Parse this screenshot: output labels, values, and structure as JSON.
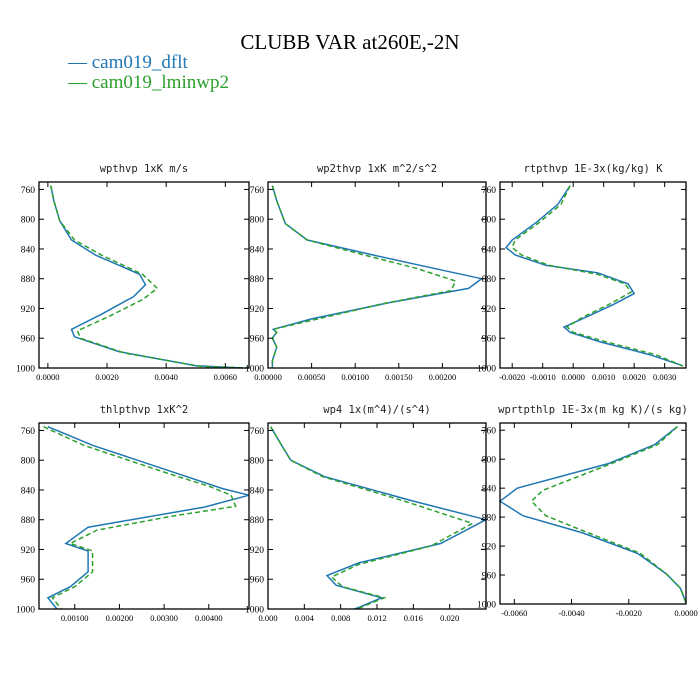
{
  "title": "CLUBB VAR at260E,-2N",
  "legend": [
    {
      "label": "cam019_dflt",
      "color": "#1f77b4",
      "dash": "solid"
    },
    {
      "label": "cam019_lminwp2",
      "color": "#2ca02c",
      "dash": "dashed"
    }
  ],
  "chart_data": [
    {
      "type": "line",
      "title": "wpthvp  1xK m/s",
      "ylim": [
        1000,
        750
      ],
      "yticks": [
        760,
        800,
        840,
        880,
        920,
        960,
        1000
      ],
      "xlim": [
        -0.0003,
        0.0068
      ],
      "xticks": [
        0,
        0.002,
        0.004,
        0.006
      ],
      "xticklabels": [
        "0.0000",
        "0.0020",
        "0.0040",
        "0.0060"
      ],
      "series": [
        {
          "name": "cam019_dflt",
          "points": [
            [
              0.0001,
              755
            ],
            [
              0.0002,
              775
            ],
            [
              0.0004,
              802
            ],
            [
              0.0008,
              828
            ],
            [
              0.0016,
              848
            ],
            [
              0.0031,
              874
            ],
            [
              0.0033,
              888
            ],
            [
              0.0029,
              904
            ],
            [
              0.0018,
              928
            ],
            [
              0.0008,
              948
            ],
            [
              0.0009,
              958
            ],
            [
              0.0024,
              978
            ],
            [
              0.005,
              997
            ],
            [
              0.0066,
              1000
            ]
          ]
        },
        {
          "name": "cam019_lminwp2",
          "points": [
            [
              0.0001,
              755
            ],
            [
              0.0002,
              775
            ],
            [
              0.0004,
              802
            ],
            [
              0.0009,
              828
            ],
            [
              0.0018,
              848
            ],
            [
              0.0032,
              874
            ],
            [
              0.0037,
              893
            ],
            [
              0.0032,
              908
            ],
            [
              0.0021,
              930
            ],
            [
              0.001,
              950
            ],
            [
              0.0011,
              960
            ],
            [
              0.0026,
              980
            ],
            [
              0.0052,
              998
            ],
            [
              0.0068,
              1000
            ]
          ]
        }
      ]
    },
    {
      "type": "line",
      "title": "wp2thvp  1xK m^2/s^2",
      "ylim": [
        1000,
        750
      ],
      "yticks": [
        760,
        800,
        840,
        880,
        920,
        960,
        1000
      ],
      "xlim": [
        0,
        0.0025
      ],
      "xticks": [
        0,
        0.0005,
        0.001,
        0.0015,
        0.002
      ],
      "xticklabels": [
        "0.00000",
        "0.00050",
        "0.00100",
        "0.00150",
        "0.00200"
      ],
      "series": [
        {
          "name": "cam019_dflt",
          "points": [
            [
              5e-05,
              755
            ],
            [
              0.0001,
              775
            ],
            [
              0.0002,
              806
            ],
            [
              0.00045,
              828
            ],
            [
              0.0012,
              848
            ],
            [
              0.0019,
              866
            ],
            [
              0.00245,
              880
            ],
            [
              0.0023,
              893
            ],
            [
              0.0014,
              912
            ],
            [
              0.0005,
              934
            ],
            [
              6e-05,
              948
            ],
            [
              0.0001,
              952
            ],
            [
              5e-05,
              960
            ],
            [
              0.0001,
              972
            ],
            [
              5e-05,
              990
            ],
            [
              5e-05,
              1000
            ]
          ]
        },
        {
          "name": "cam019_lminwp2",
          "points": [
            [
              5e-05,
              755
            ],
            [
              0.0001,
              775
            ],
            [
              0.0002,
              806
            ],
            [
              0.00045,
              828
            ],
            [
              0.0011,
              848
            ],
            [
              0.0017,
              866
            ],
            [
              0.00215,
              883
            ],
            [
              0.0021,
              896
            ],
            [
              0.0013,
              914
            ],
            [
              0.0005,
              936
            ],
            [
              6e-05,
              948
            ],
            [
              0.0001,
              952
            ],
            [
              5e-05,
              960
            ],
            [
              0.0001,
              972
            ],
            [
              5e-05,
              990
            ],
            [
              5e-05,
              1000
            ]
          ]
        }
      ]
    },
    {
      "type": "line",
      "title": "rtpthvp  1E-3x(kg/kg) K",
      "ylim": [
        1000,
        750
      ],
      "yticks": [
        760,
        800,
        840,
        880,
        920,
        960,
        1000
      ],
      "xlim": [
        -0.0024,
        0.0037
      ],
      "xticks": [
        -0.002,
        -0.001,
        0,
        0.001,
        0.002,
        0.003
      ],
      "xticklabels": [
        "-0.0020",
        "-0.0010",
        "0.0000",
        "0.0010",
        "0.0020",
        "0.0030"
      ],
      "series": [
        {
          "name": "cam019_dflt",
          "points": [
            [
              -0.0001,
              755
            ],
            [
              -0.0005,
              780
            ],
            [
              -0.0012,
              804
            ],
            [
              -0.002,
              828
            ],
            [
              -0.0022,
              838
            ],
            [
              -0.0019,
              848
            ],
            [
              -0.0009,
              862
            ],
            [
              0.0008,
              872
            ],
            [
              0.0018,
              887
            ],
            [
              0.002,
              900
            ],
            [
              0.0013,
              915
            ],
            [
              0.0004,
              932
            ],
            [
              -0.0003,
              945
            ],
            [
              -0.0001,
              952
            ],
            [
              0.0009,
              965
            ],
            [
              0.0025,
              982
            ],
            [
              0.0036,
              997
            ]
          ]
        },
        {
          "name": "cam019_lminwp2",
          "points": [
            [
              -0.0001,
              755
            ],
            [
              -0.0004,
              780
            ],
            [
              -0.0011,
              804
            ],
            [
              -0.0019,
              828
            ],
            [
              -0.002,
              838
            ],
            [
              -0.0017,
              848
            ],
            [
              -0.0008,
              862
            ],
            [
              0.0008,
              874
            ],
            [
              0.0017,
              887
            ],
            [
              0.0019,
              898
            ],
            [
              0.0012,
              914
            ],
            [
              0.0003,
              932
            ],
            [
              -0.0002,
              945
            ],
            [
              0.0,
              952
            ],
            [
              0.0011,
              965
            ],
            [
              0.0027,
              982
            ],
            [
              0.0037,
              999
            ]
          ]
        }
      ]
    },
    {
      "type": "line",
      "title": "thlpthvp  1xK^2",
      "ylim": [
        1000,
        750
      ],
      "yticks": [
        760,
        800,
        840,
        880,
        920,
        960,
        1000
      ],
      "xlim": [
        0.0002,
        0.0049
      ],
      "xticks": [
        0.001,
        0.002,
        0.003,
        0.004
      ],
      "xticklabels": [
        "0.00100",
        "0.00200",
        "0.00300",
        "0.00400"
      ],
      "series": [
        {
          "name": "cam019_dflt",
          "points": [
            [
              0.0004,
              755
            ],
            [
              0.0014,
              780
            ],
            [
              0.0033,
              818
            ],
            [
              0.0043,
              838
            ],
            [
              0.0049,
              847
            ],
            [
              0.0039,
              863
            ],
            [
              0.0013,
              890
            ],
            [
              0.0008,
              912
            ],
            [
              0.0013,
              922
            ],
            [
              0.0013,
              950
            ],
            [
              0.0009,
              970
            ],
            [
              0.0004,
              985
            ],
            [
              0.0006,
              1000
            ]
          ]
        },
        {
          "name": "cam019_lminwp2",
          "points": [
            [
              0.0003,
              755
            ],
            [
              0.0012,
              780
            ],
            [
              0.0031,
              818
            ],
            [
              0.004,
              835
            ],
            [
              0.0045,
              847
            ],
            [
              0.0046,
              862
            ],
            [
              0.0032,
              875
            ],
            [
              0.0015,
              894
            ],
            [
              0.0009,
              912
            ],
            [
              0.0014,
              922
            ],
            [
              0.0014,
              950
            ],
            [
              0.001,
              970
            ],
            [
              0.0005,
              985
            ],
            [
              0.0007,
              1000
            ]
          ]
        }
      ]
    },
    {
      "type": "line",
      "title": "wp4  1x(m^4)/(s^4)",
      "ylim": [
        1000,
        750
      ],
      "yticks": [
        760,
        800,
        840,
        880,
        920,
        960,
        1000
      ],
      "xlim": [
        0,
        0.024
      ],
      "xticks": [
        0,
        0.004,
        0.008,
        0.012,
        0.016,
        0.02
      ],
      "xticklabels": [
        "0.000",
        "0.004",
        "0.008",
        "0.012",
        "0.016",
        "0.020"
      ],
      "series": [
        {
          "name": "cam019_dflt",
          "points": [
            [
              0.0003,
              755
            ],
            [
              0.0015,
              780
            ],
            [
              0.0025,
              800
            ],
            [
              0.0062,
              822
            ],
            [
              0.016,
              855
            ],
            [
              0.024,
              880
            ],
            [
              0.019,
              912
            ],
            [
              0.01,
              938
            ],
            [
              0.0065,
              955
            ],
            [
              0.0075,
              968
            ],
            [
              0.0125,
              985
            ],
            [
              0.01,
              998
            ],
            [
              0.0095,
              1000
            ]
          ]
        },
        {
          "name": "cam019_lminwp2",
          "points": [
            [
              0.0003,
              755
            ],
            [
              0.0015,
              780
            ],
            [
              0.0025,
              800
            ],
            [
              0.006,
              822
            ],
            [
              0.015,
              855
            ],
            [
              0.0225,
              885
            ],
            [
              0.018,
              915
            ],
            [
              0.01,
              940
            ],
            [
              0.007,
              957
            ],
            [
              0.0082,
              970
            ],
            [
              0.0128,
              985
            ],
            [
              0.0102,
              998
            ],
            [
              0.0098,
              1000
            ]
          ]
        }
      ]
    },
    {
      "type": "line",
      "title": "wprtpthlp  1E-3x(m kg K)/(s kg)",
      "ylim": [
        1000,
        750
      ],
      "yticks": [
        760,
        800,
        840,
        880,
        920,
        960,
        1000
      ],
      "xlim": [
        -0.0065,
        0
      ],
      "xticks": [
        -0.006,
        -0.004,
        -0.002,
        0
      ],
      "xticklabels": [
        "-0.0060",
        "-0.0040",
        "-0.0020",
        "0.0000"
      ],
      "series": [
        {
          "name": "cam019_dflt",
          "points": [
            [
              -0.0003,
              755
            ],
            [
              -0.0011,
              780
            ],
            [
              -0.0027,
              806
            ],
            [
              -0.0059,
              840
            ],
            [
              -0.0065,
              858
            ],
            [
              -0.0057,
              878
            ],
            [
              -0.0036,
              902
            ],
            [
              -0.0017,
              930
            ],
            [
              -0.0007,
              958
            ],
            [
              -0.0002,
              978
            ],
            [
              0.0,
              998
            ]
          ]
        },
        {
          "name": "cam019_lminwp2",
          "points": [
            [
              -0.0003,
              755
            ],
            [
              -0.001,
              780
            ],
            [
              -0.0026,
              806
            ],
            [
              -0.005,
              843
            ],
            [
              -0.0054,
              858
            ],
            [
              -0.0049,
              878
            ],
            [
              -0.0034,
              902
            ],
            [
              -0.0016,
              930
            ],
            [
              -0.0007,
              958
            ],
            [
              -0.0002,
              978
            ],
            [
              0.0,
              998
            ]
          ]
        }
      ]
    }
  ]
}
